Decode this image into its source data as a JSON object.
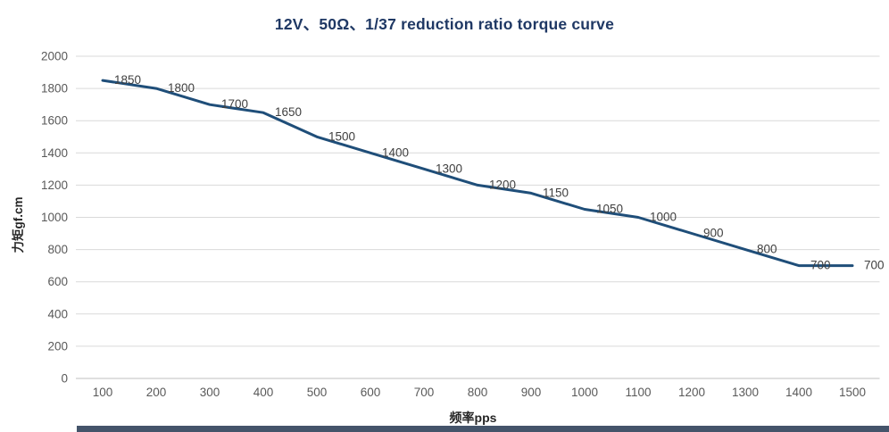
{
  "chart_data": {
    "type": "line",
    "title": "12V、50Ω、1/37 reduction ratio torque curve",
    "xlabel": "频率pps",
    "ylabel": "力矩gf.cm",
    "categories": [
      100,
      200,
      300,
      400,
      500,
      600,
      700,
      800,
      900,
      1000,
      1100,
      1200,
      1300,
      1400,
      1500
    ],
    "values": [
      1850,
      1800,
      1700,
      1650,
      1500,
      1400,
      1300,
      1200,
      1150,
      1050,
      1000,
      900,
      800,
      700,
      700
    ],
    "ylim": [
      0,
      2000
    ],
    "ytick_step": 200,
    "yticks": [
      0,
      200,
      400,
      600,
      800,
      1000,
      1200,
      1400,
      1600,
      1800,
      2000
    ],
    "grid": true,
    "legend": "none",
    "colors": {
      "line": "#1F4E79",
      "grid": "#D9D9D9",
      "axis_line": "#BFBFBF",
      "tick_label": "#595959",
      "data_label": "#404040",
      "title": "#1F3864",
      "axis_title": "#262626",
      "bottom_bar": "#44546A"
    }
  }
}
